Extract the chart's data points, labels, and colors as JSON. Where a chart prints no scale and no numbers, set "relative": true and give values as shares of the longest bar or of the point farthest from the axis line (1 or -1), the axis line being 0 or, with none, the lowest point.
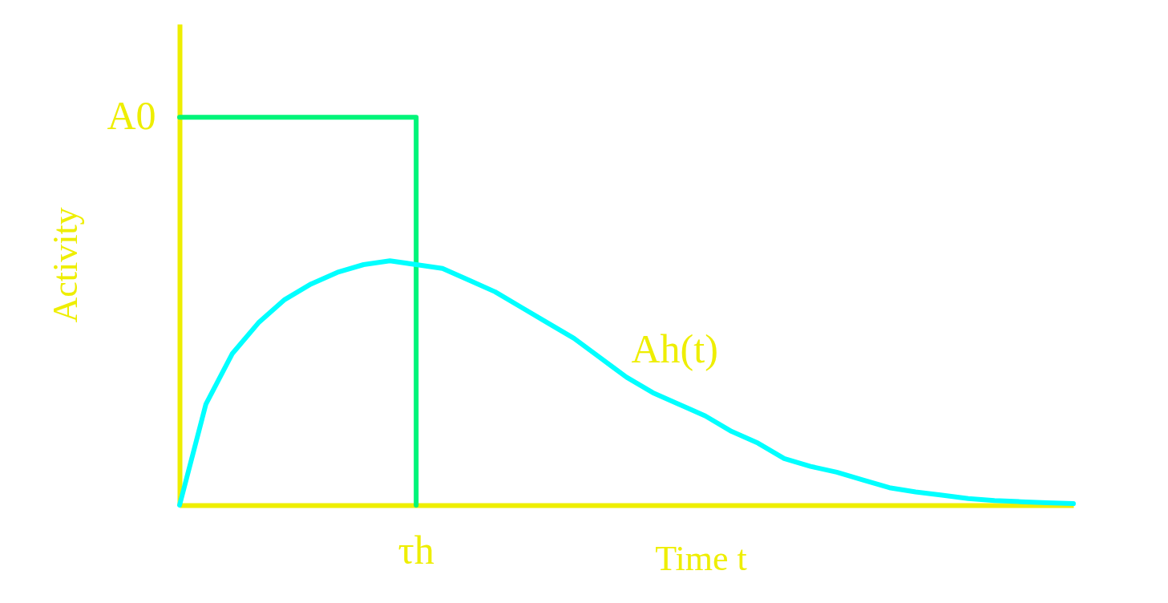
{
  "chart_data": {
    "type": "line",
    "relative": true,
    "xlabel": "Time t",
    "ylabel": "Activity",
    "grid": false,
    "line_style": "solid",
    "annotations": [
      "A0",
      "τh"
    ],
    "categories": [
      null,
      null,
      null,
      null,
      null,
      null,
      null,
      null,
      null,
      null,
      null,
      null,
      null,
      null,
      null,
      null,
      null,
      null,
      null,
      null,
      null,
      null,
      null,
      null,
      null,
      null,
      null,
      null,
      null,
      null,
      null,
      null,
      null,
      null,
      null
    ],
    "series": [
      {
        "type": "step",
        "color": "#00f57a",
        "values": [
          1,
          1,
          1,
          1,
          1,
          1,
          1,
          1,
          1,
          0,
          null,
          null,
          null,
          null,
          null,
          null,
          null,
          null,
          null,
          null,
          null,
          null,
          null,
          null,
          null,
          null,
          null,
          null,
          null,
          null,
          null,
          null,
          null,
          null,
          null
        ]
      },
      {
        "name": "Ah(t)",
        "color": "#00ffff",
        "values": [
          0,
          0.26,
          0.39,
          0.47,
          0.53,
          0.57,
          0.6,
          0.62,
          0.63,
          0.62,
          0.61,
          0.58,
          0.55,
          0.51,
          0.47,
          0.43,
          0.38,
          0.33,
          0.29,
          0.26,
          0.23,
          0.19,
          0.16,
          0.12,
          0.1,
          0.085,
          0.065,
          0.045,
          0.034,
          0.026,
          0.017,
          0.012,
          0.009,
          0.006,
          0.004
        ]
      }
    ]
  }
}
